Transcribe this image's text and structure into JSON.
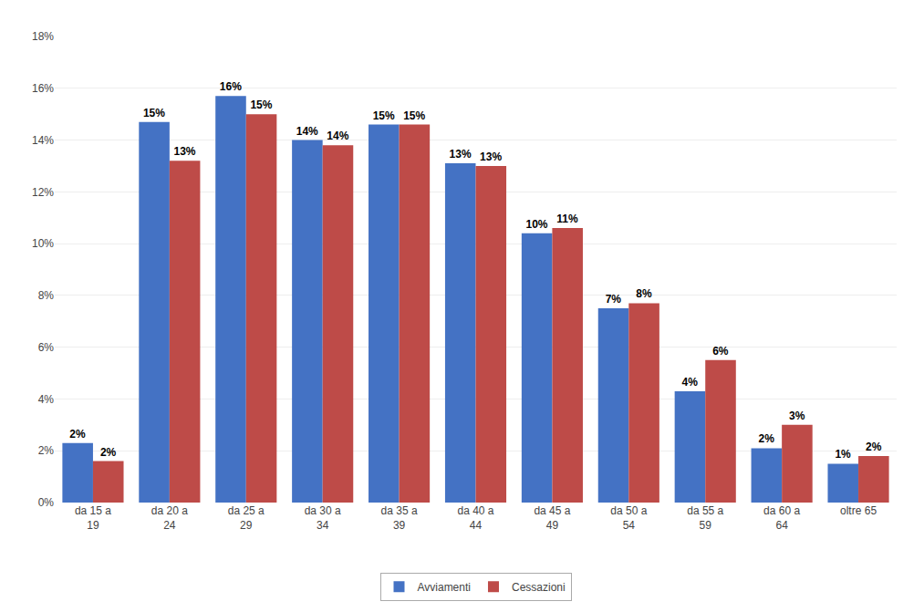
{
  "chart_data": {
    "type": "bar",
    "categories": [
      "da 15 a\n19",
      "da 20 a\n24",
      "da 25 a\n29",
      "da 30 a\n34",
      "da 35 a\n39",
      "da 40 a\n44",
      "da 45 a\n49",
      "da 50 a\n54",
      "da 55 a\n59",
      "da 60 a\n64",
      "oltre 65"
    ],
    "series": [
      {
        "name": "Avviamenti",
        "color": "#4472C4",
        "values": [
          2.3,
          14.7,
          15.7,
          14.0,
          14.6,
          13.1,
          10.4,
          7.5,
          4.3,
          2.1,
          1.5
        ],
        "value_labels": [
          "2%",
          "15%",
          "16%",
          "14%",
          "15%",
          "13%",
          "10%",
          "7%",
          "4%",
          "2%",
          "1%"
        ]
      },
      {
        "name": "Cessazioni",
        "color": "#BE4B48",
        "values": [
          1.6,
          13.2,
          15.0,
          13.8,
          14.6,
          13.0,
          10.6,
          7.7,
          5.5,
          3.0,
          1.8
        ],
        "value_labels": [
          "2%",
          "13%",
          "15%",
          "14%",
          "15%",
          "13%",
          "11%",
          "8%",
          "6%",
          "3%",
          "2%"
        ]
      }
    ],
    "ylim": [
      0,
      18
    ],
    "yticks": [
      {
        "value": 0,
        "label": "0%"
      },
      {
        "value": 2,
        "label": "2%"
      },
      {
        "value": 4,
        "label": "4%"
      },
      {
        "value": 6,
        "label": "6%"
      },
      {
        "value": 8,
        "label": "8%"
      },
      {
        "value": 10,
        "label": "10%"
      },
      {
        "value": 12,
        "label": "12%"
      },
      {
        "value": 14,
        "label": "14%"
      },
      {
        "value": 16,
        "label": "16%"
      },
      {
        "value": 18,
        "label": "18%"
      }
    ],
    "grid": true,
    "legend": "bottom",
    "data_labels": true
  }
}
